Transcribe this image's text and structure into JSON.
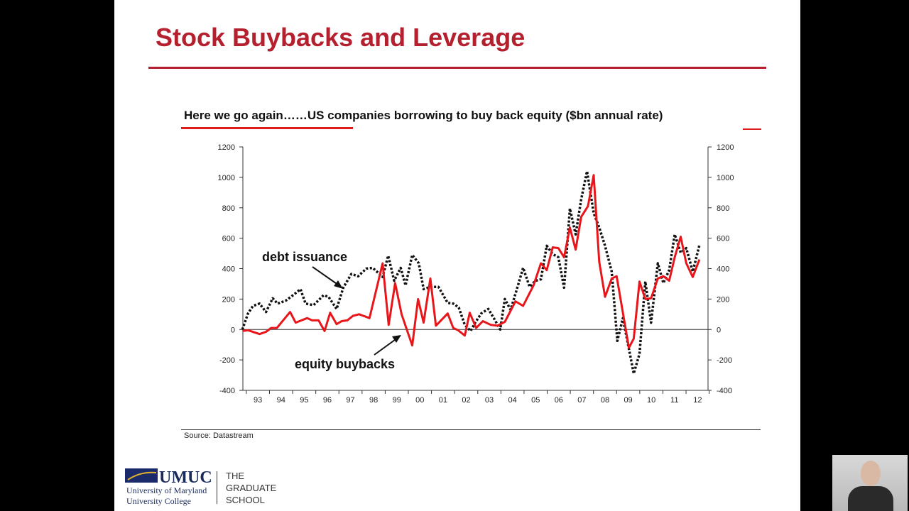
{
  "slide": {
    "title": "Stock Buybacks and Leverage",
    "logo": {
      "name": "UMUC",
      "line1": "University of Maryland",
      "line2": "University College"
    },
    "school": [
      "THE",
      "GRADUATE",
      "SCHOOL"
    ]
  },
  "chart_data": {
    "type": "line",
    "title": "Here we go again……US companies borrowing to buy back equity ($bn annual rate)",
    "source": "Source: Datastream",
    "xlabel": "",
    "ylabel": "",
    "ylim": [
      -400,
      1200
    ],
    "yticks": [
      "1200",
      "1000",
      "800",
      "600",
      "400",
      "200",
      "0",
      "-200",
      "-400"
    ],
    "ytick_values": [
      1200,
      1000,
      800,
      600,
      400,
      200,
      0,
      -200,
      -400
    ],
    "xlim": [
      1992.85,
      2012.95
    ],
    "xtick_labels": [
      "93",
      "94",
      "95",
      "96",
      "97",
      "98",
      "99",
      "00",
      "01",
      "02",
      "03",
      "04",
      "05",
      "06",
      "07",
      "08",
      "09",
      "10",
      "11",
      "12"
    ],
    "grid": false,
    "dual_y_axis": true,
    "annotations": {
      "debt": "debt issuance",
      "equity": "equity buybacks"
    },
    "series": [
      {
        "name": "equity buybacks",
        "color": "#e8161b",
        "style": "solid",
        "points": [
          [
            1992.83,
            -10
          ],
          [
            1993.07,
            -5
          ],
          [
            1993.57,
            -30
          ],
          [
            1993.85,
            -15
          ],
          [
            1994.07,
            10
          ],
          [
            1994.32,
            10
          ],
          [
            1994.89,
            115
          ],
          [
            1995.13,
            45
          ],
          [
            1995.63,
            75
          ],
          [
            1995.84,
            60
          ],
          [
            1996.12,
            60
          ],
          [
            1996.38,
            -10
          ],
          [
            1996.62,
            110
          ],
          [
            1996.9,
            35
          ],
          [
            1997.12,
            55
          ],
          [
            1997.36,
            60
          ],
          [
            1997.61,
            90
          ],
          [
            1997.87,
            100
          ],
          [
            1998.32,
            75
          ],
          [
            1998.89,
            435
          ],
          [
            1999.15,
            30
          ],
          [
            1999.43,
            305
          ],
          [
            1999.71,
            100
          ],
          [
            2000.17,
            -105
          ],
          [
            2000.42,
            200
          ],
          [
            2000.66,
            45
          ],
          [
            2000.95,
            335
          ],
          [
            2001.19,
            25
          ],
          [
            2001.7,
            105
          ],
          [
            2001.94,
            10
          ],
          [
            2002.15,
            -5
          ],
          [
            2002.44,
            -40
          ],
          [
            2002.65,
            110
          ],
          [
            2002.93,
            10
          ],
          [
            2003.22,
            55
          ],
          [
            2003.57,
            30
          ],
          [
            2003.85,
            25
          ],
          [
            2004.17,
            50
          ],
          [
            2004.63,
            185
          ],
          [
            2004.96,
            155
          ],
          [
            2005.41,
            290
          ],
          [
            2005.73,
            435
          ],
          [
            2005.98,
            390
          ],
          [
            2006.24,
            540
          ],
          [
            2006.48,
            535
          ],
          [
            2006.73,
            475
          ],
          [
            2006.98,
            670
          ],
          [
            2007.23,
            525
          ],
          [
            2007.47,
            740
          ],
          [
            2007.76,
            810
          ],
          [
            2008.01,
            1015
          ],
          [
            2008.25,
            445
          ],
          [
            2008.5,
            215
          ],
          [
            2008.79,
            335
          ],
          [
            2009.0,
            350
          ],
          [
            2009.53,
            -120
          ],
          [
            2009.74,
            -60
          ],
          [
            2009.99,
            315
          ],
          [
            2010.24,
            200
          ],
          [
            2010.49,
            205
          ],
          [
            2010.78,
            335
          ],
          [
            2011.02,
            350
          ],
          [
            2011.27,
            320
          ],
          [
            2011.51,
            475
          ],
          [
            2011.77,
            610
          ],
          [
            2012.01,
            435
          ],
          [
            2012.29,
            345
          ],
          [
            2012.58,
            460
          ]
        ]
      },
      {
        "name": "debt issuance",
        "color": "#111111",
        "style": "dotted",
        "points": [
          [
            1992.83,
            0
          ],
          [
            1993.07,
            105
          ],
          [
            1993.29,
            155
          ],
          [
            1993.57,
            170
          ],
          [
            1993.85,
            115
          ],
          [
            1994.14,
            205
          ],
          [
            1994.35,
            170
          ],
          [
            1994.71,
            190
          ],
          [
            1995.06,
            230
          ],
          [
            1995.34,
            265
          ],
          [
            1995.56,
            170
          ],
          [
            1995.91,
            160
          ],
          [
            1996.34,
            225
          ],
          [
            1996.55,
            215
          ],
          [
            1996.9,
            135
          ],
          [
            1997.19,
            275
          ],
          [
            1997.54,
            365
          ],
          [
            1997.83,
            350
          ],
          [
            1998.18,
            400
          ],
          [
            1998.46,
            405
          ],
          [
            1998.75,
            365
          ],
          [
            1998.89,
            345
          ],
          [
            1999.13,
            485
          ],
          [
            1999.39,
            320
          ],
          [
            1999.67,
            405
          ],
          [
            1999.88,
            290
          ],
          [
            2000.17,
            490
          ],
          [
            2000.45,
            435
          ],
          [
            2000.66,
            265
          ],
          [
            2000.95,
            280
          ],
          [
            2001.3,
            280
          ],
          [
            2001.7,
            175
          ],
          [
            2001.94,
            170
          ],
          [
            2002.18,
            145
          ],
          [
            2002.44,
            30
          ],
          [
            2002.69,
            -10
          ],
          [
            2002.89,
            45
          ],
          [
            2003.15,
            105
          ],
          [
            2003.46,
            135
          ],
          [
            2003.71,
            70
          ],
          [
            2003.97,
            0
          ],
          [
            2004.17,
            200
          ],
          [
            2004.42,
            130
          ],
          [
            2004.68,
            260
          ],
          [
            2004.96,
            405
          ],
          [
            2005.24,
            280
          ],
          [
            2005.49,
            320
          ],
          [
            2005.73,
            330
          ],
          [
            2005.98,
            550
          ],
          [
            2006.24,
            495
          ],
          [
            2006.48,
            475
          ],
          [
            2006.73,
            275
          ],
          [
            2006.98,
            795
          ],
          [
            2007.23,
            625
          ],
          [
            2007.47,
            855
          ],
          [
            2007.72,
            1040
          ],
          [
            2008.01,
            765
          ],
          [
            2008.25,
            670
          ],
          [
            2008.5,
            550
          ],
          [
            2008.79,
            380
          ],
          [
            2009.03,
            -75
          ],
          [
            2009.27,
            75
          ],
          [
            2009.74,
            -290
          ],
          [
            2009.99,
            -160
          ],
          [
            2010.24,
            315
          ],
          [
            2010.49,
            45
          ],
          [
            2010.78,
            435
          ],
          [
            2011.02,
            305
          ],
          [
            2011.27,
            390
          ],
          [
            2011.51,
            625
          ],
          [
            2011.77,
            505
          ],
          [
            2012.01,
            535
          ],
          [
            2012.29,
            380
          ],
          [
            2012.58,
            555
          ]
        ]
      }
    ]
  }
}
